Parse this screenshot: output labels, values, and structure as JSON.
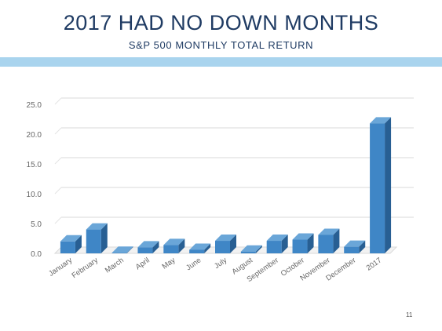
{
  "title": "2017 HAD NO DOWN MONTHS",
  "subtitle": "S&P 500 MONTHLY TOTAL RETURN",
  "page_number": "11",
  "colors": {
    "title": "#1f3b63",
    "band": "#a9d4ee",
    "bar_front": "#3f86c6",
    "bar_top": "#6aa6d8",
    "bar_side": "#285f93"
  },
  "chart_data": {
    "type": "bar",
    "categories": [
      "January",
      "February",
      "March",
      "April",
      "May",
      "June",
      "July",
      "August",
      "September",
      "October",
      "November",
      "December",
      "2017"
    ],
    "values": [
      2.0,
      4.0,
      0.1,
      1.0,
      1.4,
      0.6,
      2.1,
      0.3,
      2.1,
      2.3,
      3.1,
      1.1,
      21.8
    ],
    "y_ticks": [
      "0.0",
      "5.0",
      "10.0",
      "15.0",
      "20.0",
      "25.0"
    ],
    "ylim": [
      0,
      25
    ],
    "grid": true,
    "legend": "none",
    "style": "3d-column"
  }
}
